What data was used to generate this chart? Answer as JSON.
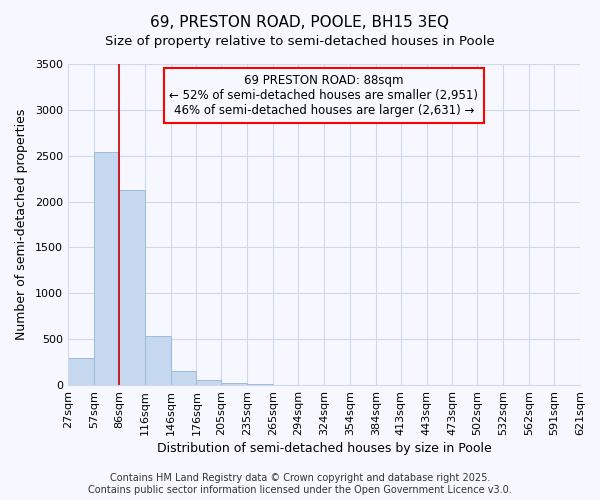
{
  "title": "69, PRESTON ROAD, POOLE, BH15 3EQ",
  "subtitle": "Size of property relative to semi-detached houses in Poole",
  "xlabel": "Distribution of semi-detached houses by size in Poole",
  "ylabel": "Number of semi-detached properties",
  "bar_values": [
    300,
    2540,
    2130,
    530,
    155,
    60,
    20,
    8,
    4,
    2,
    1,
    0,
    0,
    0,
    0,
    0,
    0,
    0,
    0,
    0
  ],
  "bin_edges": [
    27,
    57,
    86,
    116,
    146,
    176,
    205,
    235,
    265,
    294,
    324,
    354,
    384,
    413,
    443,
    473,
    502,
    532,
    562,
    591,
    621
  ],
  "x_tick_labels": [
    "27sqm",
    "57sqm",
    "86sqm",
    "116sqm",
    "146sqm",
    "176sqm",
    "205sqm",
    "235sqm",
    "265sqm",
    "294sqm",
    "324sqm",
    "354sqm",
    "384sqm",
    "413sqm",
    "443sqm",
    "473sqm",
    "502sqm",
    "532sqm",
    "562sqm",
    "591sqm",
    "621sqm"
  ],
  "bar_color": "#c5d8ef",
  "bar_edge_color": "#9bbcd8",
  "property_line_x": 86,
  "annotation_line1": "69 PRESTON ROAD: 88sqm",
  "annotation_line2": "← 52% of semi-detached houses are smaller (2,951)",
  "annotation_line3": "46% of semi-detached houses are larger (2,631) →",
  "ylim": [
    0,
    3500
  ],
  "yticks": [
    0,
    500,
    1000,
    1500,
    2000,
    2500,
    3000,
    3500
  ],
  "footer_line1": "Contains HM Land Registry data © Crown copyright and database right 2025.",
  "footer_line2": "Contains public sector information licensed under the Open Government Licence v3.0.",
  "bg_color": "#f7f8ff",
  "grid_color": "#d0d8ee",
  "title_fontsize": 11,
  "subtitle_fontsize": 9.5,
  "axis_label_fontsize": 9,
  "tick_fontsize": 8,
  "footer_fontsize": 7,
  "annotation_fontsize": 8.5
}
